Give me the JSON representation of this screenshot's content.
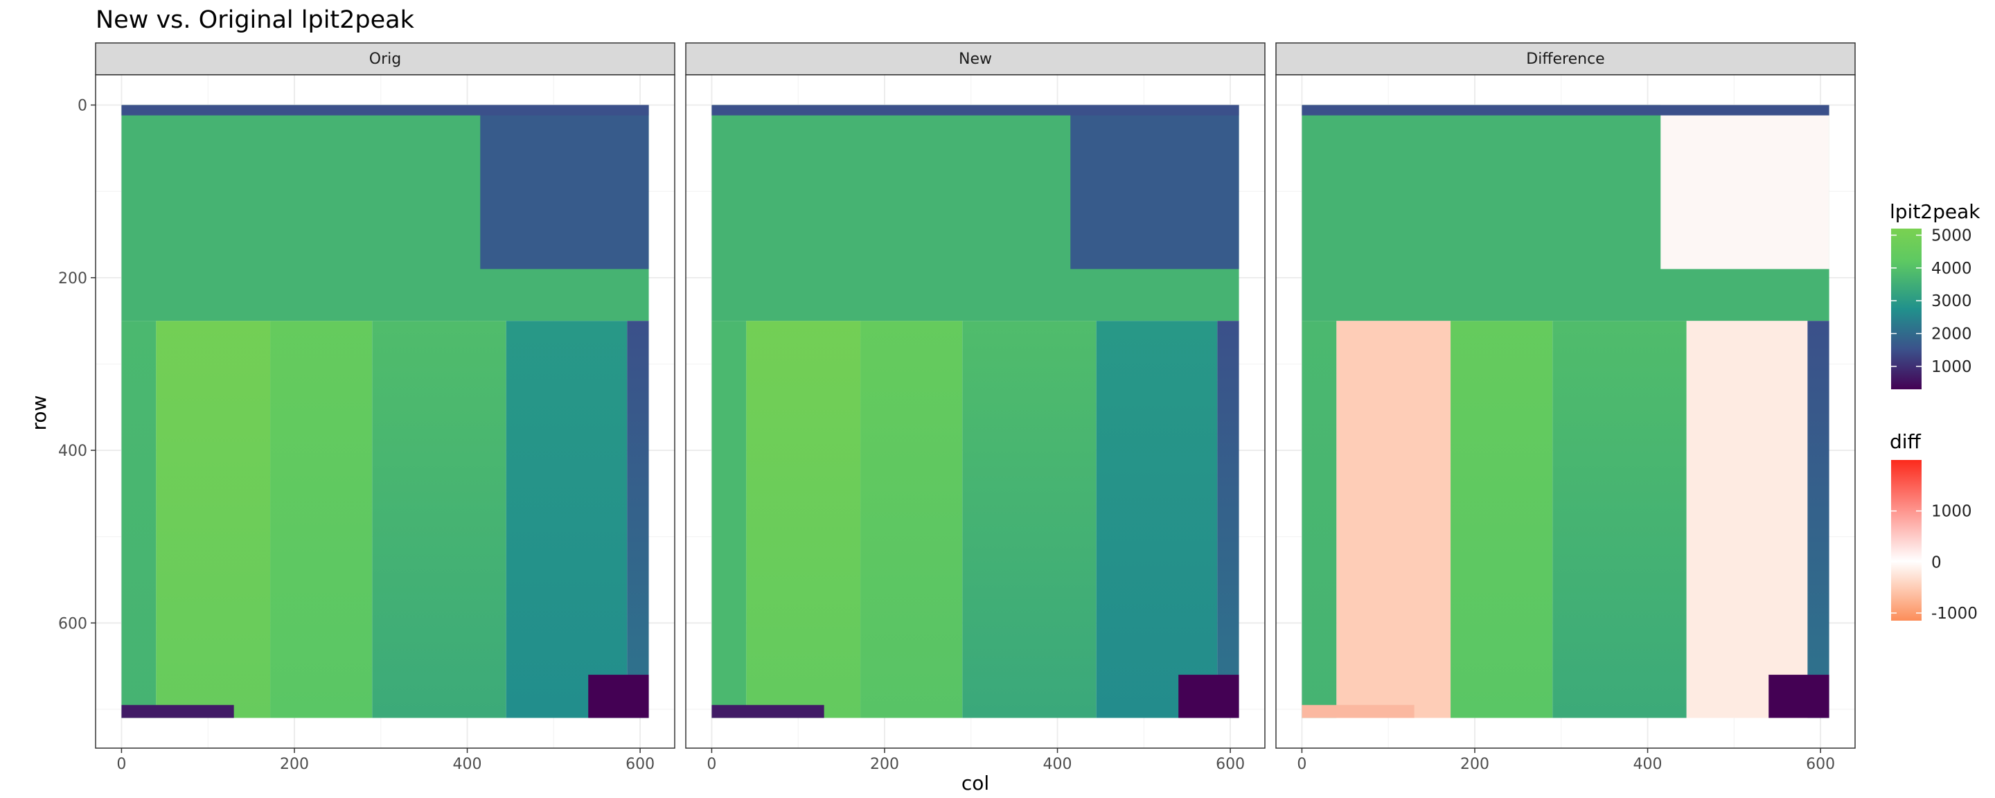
{
  "chart_data": {
    "type": "heatmap",
    "title": "New vs. Original lpit2peak",
    "xlabel": "col",
    "ylabel": "row",
    "xlim": [
      -30,
      640
    ],
    "ylim": [
      -35,
      745
    ],
    "y_reversed": true,
    "xticks": [
      0,
      200,
      400,
      600
    ],
    "yticks": [
      0,
      200,
      400,
      600
    ],
    "panels": [
      {
        "name": "Orig",
        "kind": "value"
      },
      {
        "name": "New",
        "kind": "value"
      },
      {
        "name": "Difference",
        "kind": "diff"
      }
    ],
    "raster_extent": {
      "x": [
        0,
        610
      ],
      "y": [
        0,
        710
      ]
    },
    "column_bands": [
      {
        "name": "left strip",
        "x": [
          0,
          40
        ],
        "value_top": 3600,
        "value_bottom": 3500,
        "new_value_bottom": 3600,
        "diff": 0
      },
      {
        "name": "bright column",
        "x": [
          40,
          172
        ],
        "value_top": 4900,
        "value_bottom": 4350,
        "new_value_bottom": 4200,
        "diff": -500
      },
      {
        "name": "middle column",
        "x": [
          172,
          290
        ],
        "value_top": 4300,
        "value_bottom": 3900,
        "new_value_bottom": 3850,
        "diff": 0
      },
      {
        "name": "right-middle column",
        "x": [
          290,
          445
        ],
        "value_top": 3700,
        "value_bottom": 3300,
        "new_value_bottom": 3250,
        "diff": 0
      },
      {
        "name": "right column",
        "x": [
          445,
          585
        ],
        "value_top": 2900,
        "value_bottom": 2700,
        "new_value_bottom": 2650,
        "diff": -200
      },
      {
        "name": "far right strip",
        "x": [
          585,
          610
        ],
        "value_top": 1500,
        "value_bottom": 2200,
        "new_value_bottom": 2200,
        "diff": 0
      }
    ],
    "top_band": {
      "y": [
        10,
        250
      ],
      "value": 3500,
      "diff_white_x": [
        410,
        610
      ]
    },
    "corner_patches": [
      {
        "x": [
          0,
          130
        ],
        "y": [
          695,
          710
        ],
        "value": 700
      },
      {
        "x": [
          540,
          610
        ],
        "y": [
          660,
          710
        ],
        "value": 300
      }
    ],
    "legends": [
      {
        "title": "lpit2peak",
        "ticks": [
          5000,
          4000,
          3000,
          2000,
          1000
        ],
        "range": [
          300,
          5200
        ],
        "colors": [
          "#440154",
          "#3b528b",
          "#21918c",
          "#5ec962",
          "#7ad151"
        ]
      },
      {
        "title": "diff",
        "ticks": [
          1000,
          0,
          -1000
        ],
        "range": [
          -1150,
          2000
        ],
        "colors": [
          "#fc8d59",
          "#ffffff",
          "#fc2a1c"
        ]
      }
    ]
  }
}
